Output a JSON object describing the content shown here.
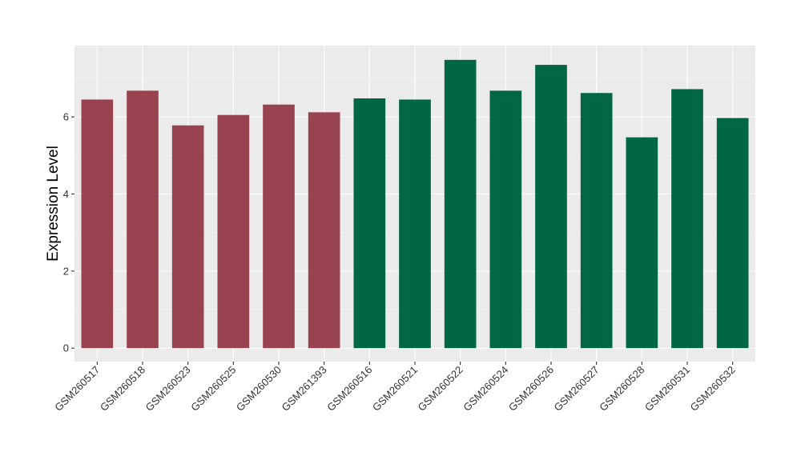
{
  "chart_data": {
    "type": "bar",
    "title": "",
    "xlabel": "",
    "ylabel": "Expression Level",
    "ylim": [
      -0.35,
      7.85
    ],
    "yticks": [
      0,
      2,
      4,
      6
    ],
    "grid": true,
    "legend": "none",
    "background": "#EBEBEB",
    "categories": [
      "GSM260517",
      "GSM260518",
      "GSM260523",
      "GSM260525",
      "GSM260530",
      "GSM261393",
      "GSM260516",
      "GSM260521",
      "GSM260522",
      "GSM260524",
      "GSM260526",
      "GSM260527",
      "GSM260528",
      "GSM260531",
      "GSM260532"
    ],
    "values": [
      6.45,
      6.68,
      5.78,
      6.05,
      6.32,
      6.12,
      6.48,
      6.45,
      7.48,
      6.68,
      7.35,
      6.62,
      5.47,
      6.72,
      5.97
    ],
    "groups": [
      0,
      0,
      0,
      0,
      0,
      0,
      1,
      1,
      1,
      1,
      1,
      1,
      1,
      1,
      1
    ],
    "group_colors": [
      "#9A4350",
      "#006643"
    ]
  }
}
